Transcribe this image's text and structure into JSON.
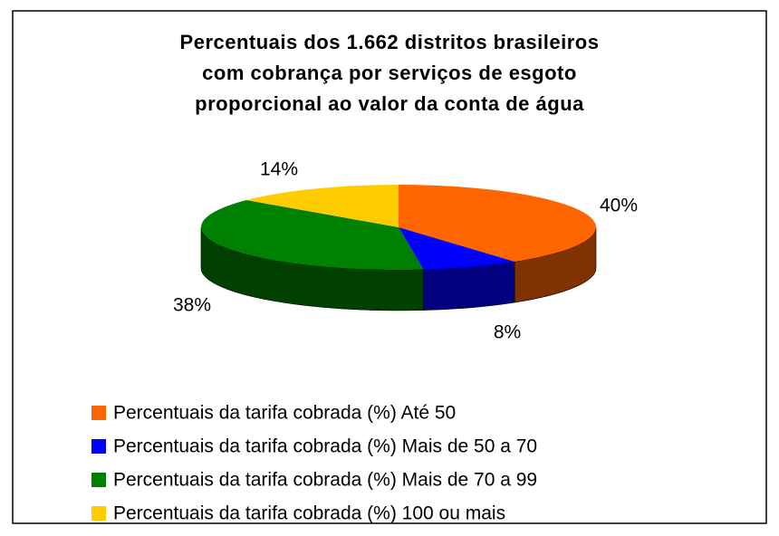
{
  "chart_data": {
    "type": "pie",
    "title": [
      "Percentuais dos 1.662 distritos brasileiros",
      "com cobrança por serviços de esgoto",
      "proporcional ao valor da conta de água"
    ],
    "categories": [
      "Percentuais da tarifa cobrada (%) Até 50",
      "Percentuais da tarifa cobrada (%) Mais de 50 a 70",
      "Percentuais da tarifa cobrada (%) Mais de 70 a 99",
      "Percentuais da tarifa cobrada (%) 100 ou mais"
    ],
    "values": [
      40,
      8,
      38,
      14
    ],
    "value_labels": [
      "40%",
      "8%",
      "38%",
      "14%"
    ],
    "colors": [
      "#ff6600",
      "#0000ff",
      "#008000",
      "#ffcc00"
    ],
    "legend": "bottom"
  }
}
